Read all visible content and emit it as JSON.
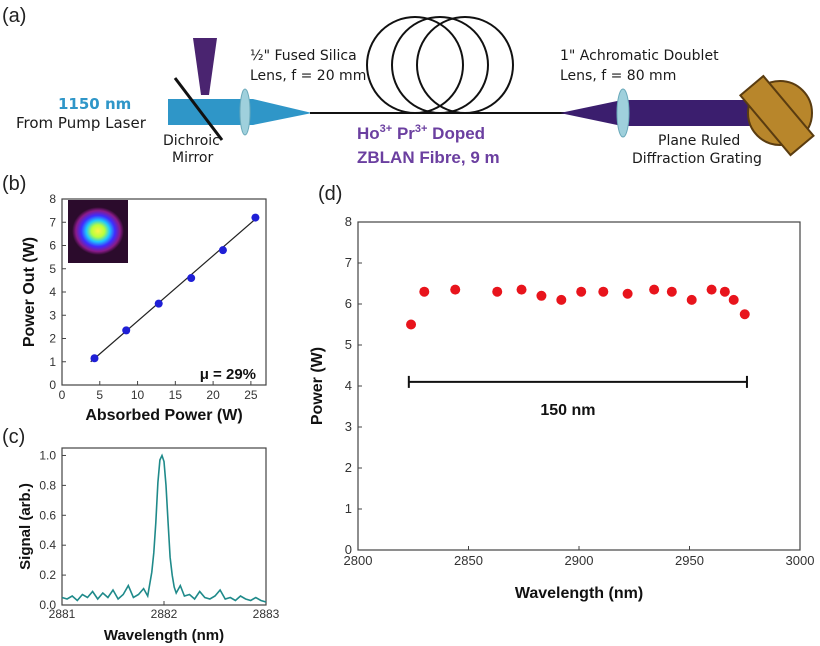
{
  "panel_labels": {
    "a": "(a)",
    "b": "(b)",
    "c": "(c)",
    "d": "(d)"
  },
  "setup": {
    "pump_wavelength": "1150 nm",
    "pump_source": "From Pump Laser",
    "dichroic_line1": "Dichroic",
    "dichroic_line2": "Mirror",
    "lens1_line1": "½\" Fused Silica",
    "lens1_line2": "Lens, f = 20 mm",
    "fibre_line1_prefix": "Ho",
    "fibre_ion1": "3+",
    "fibre_line1_mid": " Pr",
    "fibre_ion2": "3+",
    "fibre_line1_suffix": " Doped",
    "fibre_line2": "ZBLAN Fibre, 9 m",
    "lens2_line1": "1\" Achromatic Doublet",
    "lens2_line2": "Lens, f = 80 mm",
    "grating_line1": "Plane Ruled",
    "grating_line2": "Diffraction Grating",
    "colors": {
      "pump": "#2f96c8",
      "fibre_text": "#6b3fa0",
      "signal_beam": "#3b1e6e",
      "grating": "#b8862b"
    }
  },
  "chart_data": [
    {
      "panel": "b",
      "type": "scatter",
      "xlabel": "Absorbed Power (W)",
      "ylabel": "Power Out (W)",
      "xlim": [
        0,
        27
      ],
      "ylim": [
        0,
        8
      ],
      "xticks": [
        0,
        5,
        10,
        15,
        20,
        25
      ],
      "yticks": [
        0,
        1,
        2,
        3,
        4,
        5,
        6,
        7,
        8
      ],
      "x": [
        4.3,
        8.5,
        12.8,
        17.1,
        21.3,
        25.6
      ],
      "y": [
        1.15,
        2.35,
        3.5,
        4.6,
        5.8,
        7.2
      ],
      "fit_line": {
        "x": [
          3.8,
          26.0
        ],
        "y": [
          1.0,
          7.25
        ]
      },
      "annotation": "μ = 29%",
      "marker_color": "#1f1fd6",
      "inset": "beam profile image"
    },
    {
      "panel": "c",
      "type": "line",
      "xlabel": "Wavelength (nm)",
      "ylabel": "Signal (arb.)",
      "xlim": [
        2881,
        2883
      ],
      "ylim": [
        0,
        1.05
      ],
      "xticks": [
        2881,
        2882,
        2883
      ],
      "yticks": [
        0.0,
        0.2,
        0.4,
        0.6,
        0.8,
        1.0
      ],
      "x": [
        2881.0,
        2881.05,
        2881.1,
        2881.15,
        2881.2,
        2881.25,
        2881.3,
        2881.35,
        2881.4,
        2881.45,
        2881.5,
        2881.55,
        2881.6,
        2881.65,
        2881.7,
        2881.75,
        2881.8,
        2881.84,
        2881.88,
        2881.9,
        2881.92,
        2881.94,
        2881.96,
        2881.98,
        2882.0,
        2882.02,
        2882.04,
        2882.06,
        2882.08,
        2882.1,
        2882.12,
        2882.16,
        2882.2,
        2882.25,
        2882.3,
        2882.35,
        2882.4,
        2882.45,
        2882.5,
        2882.55,
        2882.6,
        2882.65,
        2882.7,
        2882.75,
        2882.8,
        2882.85,
        2882.9,
        2882.95,
        2883.0
      ],
      "y": [
        0.05,
        0.04,
        0.06,
        0.03,
        0.07,
        0.05,
        0.09,
        0.04,
        0.08,
        0.05,
        0.1,
        0.04,
        0.07,
        0.13,
        0.05,
        0.07,
        0.11,
        0.06,
        0.22,
        0.35,
        0.55,
        0.82,
        0.97,
        1.0,
        0.96,
        0.8,
        0.55,
        0.32,
        0.2,
        0.12,
        0.08,
        0.13,
        0.06,
        0.07,
        0.04,
        0.09,
        0.05,
        0.04,
        0.06,
        0.1,
        0.04,
        0.05,
        0.03,
        0.06,
        0.04,
        0.03,
        0.05,
        0.03,
        0.02
      ],
      "line_color": "#1f8a8a"
    },
    {
      "panel": "d",
      "type": "scatter",
      "xlabel": "Wavelength (nm)",
      "ylabel": "Power (W)",
      "xlim": [
        2800,
        3000
      ],
      "ylim": [
        0,
        8
      ],
      "xticks": [
        2800,
        2850,
        2900,
        2950,
        3000
      ],
      "yticks": [
        0,
        1,
        2,
        3,
        4,
        5,
        6,
        7,
        8
      ],
      "x": [
        2824,
        2830,
        2844,
        2863,
        2874,
        2883,
        2892,
        2901,
        2911,
        2922,
        2934,
        2942,
        2951,
        2960,
        2966,
        2970,
        2975
      ],
      "y": [
        5.5,
        6.3,
        6.35,
        6.3,
        6.35,
        6.2,
        6.1,
        6.3,
        6.3,
        6.25,
        6.35,
        6.3,
        6.1,
        6.35,
        6.3,
        6.1,
        5.75
      ],
      "bar": {
        "x": [
          2823,
          2976
        ],
        "y": 4.1,
        "label": "150 nm"
      },
      "marker_color": "#e8141c"
    }
  ]
}
